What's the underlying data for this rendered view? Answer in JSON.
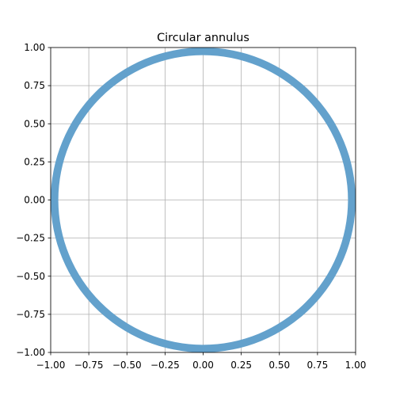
{
  "chart_data": {
    "type": "area",
    "title": "Circular annulus",
    "xlabel": "",
    "ylabel": "",
    "xlim": [
      -1.0,
      1.0
    ],
    "ylim": [
      -1.0,
      1.0
    ],
    "xticks": [
      -1.0,
      -0.75,
      -0.5,
      -0.25,
      0.0,
      0.25,
      0.5,
      0.75,
      1.0
    ],
    "yticks": [
      -1.0,
      -0.75,
      -0.5,
      -0.25,
      0.0,
      0.25,
      0.5,
      0.75,
      1.0
    ],
    "xtick_labels": [
      "−1.00",
      "−0.75",
      "−0.50",
      "−0.25",
      "0.00",
      "0.25",
      "0.50",
      "0.75",
      "1.00"
    ],
    "ytick_labels": [
      "−1.00",
      "−0.75",
      "−0.50",
      "−0.25",
      "0.00",
      "0.25",
      "0.50",
      "0.75",
      "1.00"
    ],
    "grid": true,
    "annulus": {
      "center": [
        0.0,
        0.0
      ],
      "outer_radius": 1.0,
      "inner_radius": 0.95,
      "color": "#63a1cc"
    },
    "colors": {
      "grid": "#b0b0b0",
      "axes": "#000000",
      "background": "#ffffff"
    }
  }
}
